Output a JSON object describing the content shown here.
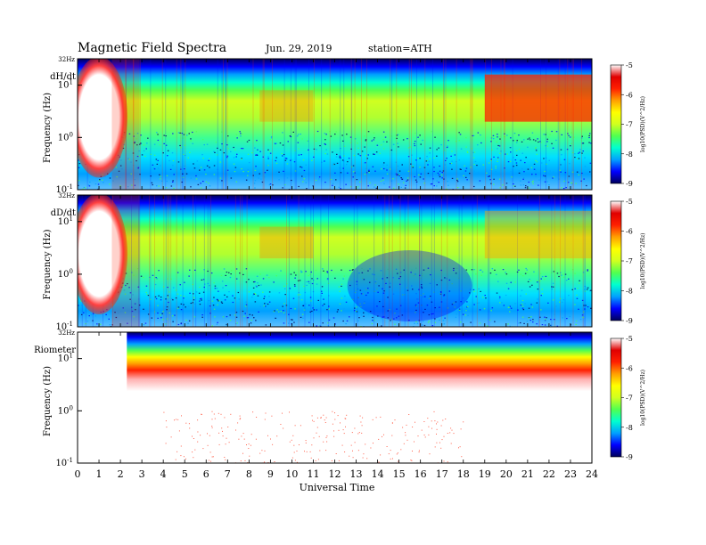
{
  "header": {
    "title": "Magnetic Field Spectra",
    "date": "Jun. 29, 2019",
    "station": "station=ATH"
  },
  "chart_data": {
    "type": "heatmap",
    "xlabel": "Universal Time",
    "x_range": [
      0,
      24
    ],
    "x_ticks": [
      "0",
      "1",
      "2",
      "3",
      "4",
      "5",
      "6",
      "7",
      "8",
      "9",
      "10",
      "11",
      "12",
      "13",
      "14",
      "15",
      "16",
      "17",
      "18",
      "19",
      "20",
      "21",
      "22",
      "23",
      "24"
    ],
    "y_scale": "log",
    "colorbar": {
      "label": "log10(PSD)(V^2/Hz)",
      "range": [
        -9,
        -5
      ],
      "ticks": [
        "-5",
        "-6",
        "-7",
        "-8",
        "-9"
      ],
      "colormap": [
        "#00005a",
        "#0000ff",
        "#00a0ff",
        "#00ffd0",
        "#50ff50",
        "#d0ff20",
        "#ffff00",
        "#ffa000",
        "#ff2000",
        "#e00000",
        "#ffffff"
      ]
    },
    "panels": [
      {
        "name": "dH/dt",
        "ylabel": "Frequency (Hz)",
        "y_ticks": [
          {
            "label": "32Hz",
            "value": 32
          },
          {
            "label": "10^1",
            "value": 10
          },
          {
            "label": "10^0",
            "value": 1
          },
          {
            "label": "10^-1",
            "value": 0.1
          }
        ]
      },
      {
        "name": "dD/dt",
        "ylabel": "Frequency (Hz)",
        "y_ticks": [
          {
            "label": "32Hz",
            "value": 32
          },
          {
            "label": "10^1",
            "value": 10
          },
          {
            "label": "10^0",
            "value": 1
          },
          {
            "label": "10^-1",
            "value": 0.1
          }
        ]
      },
      {
        "name": "Riometer",
        "ylabel": "Frequency (Hz)",
        "y_ticks": [
          {
            "label": "32Hz",
            "value": 32
          },
          {
            "label": "10^1",
            "value": 10
          },
          {
            "label": "10^0",
            "value": 1
          },
          {
            "label": "10^-1",
            "value": 0.1
          }
        ]
      }
    ]
  }
}
